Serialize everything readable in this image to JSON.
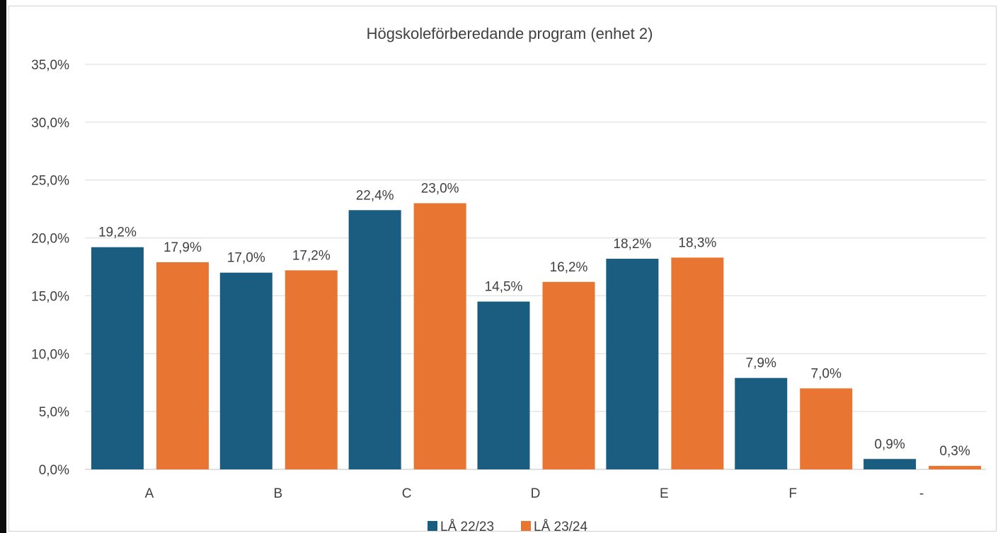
{
  "chart_data": {
    "type": "bar",
    "title": "Högskoleförberedande program (enhet 2)",
    "categories": [
      "A",
      "B",
      "C",
      "D",
      "E",
      "F",
      "-"
    ],
    "series": [
      {
        "name": "LÅ 22/23",
        "color": "#1a5d80",
        "values": [
          19.2,
          17.0,
          22.4,
          14.5,
          18.2,
          7.9,
          0.9
        ],
        "labels": [
          "19,2%",
          "17,0%",
          "22,4%",
          "14,5%",
          "18,2%",
          "7,9%",
          "0,9%"
        ]
      },
      {
        "name": "LÅ 23/24",
        "color": "#e87532",
        "values": [
          17.9,
          17.2,
          23.0,
          16.2,
          18.3,
          7.0,
          0.3
        ],
        "labels": [
          "17,9%",
          "17,2%",
          "23,0%",
          "16,2%",
          "18,3%",
          "7,0%",
          "0,3%"
        ]
      }
    ],
    "y_ticks": [
      0,
      5,
      10,
      15,
      20,
      25,
      30,
      35
    ],
    "y_tick_labels": [
      "0,0%",
      "5,0%",
      "10,0%",
      "15,0%",
      "20,0%",
      "25,0%",
      "30,0%",
      "35,0%"
    ],
    "ylim": [
      0,
      35
    ],
    "grid": true,
    "legend_position": "bottom",
    "colors": {
      "gridline": "#d9d9d9",
      "axis": "#bfbfbf",
      "text": "#404040"
    }
  }
}
